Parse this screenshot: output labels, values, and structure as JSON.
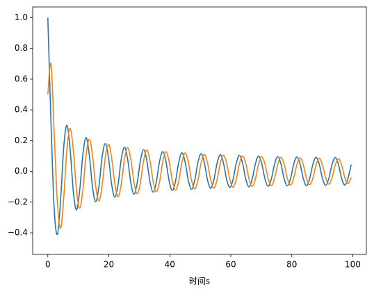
{
  "chart_data": {
    "type": "line",
    "xlabel": "时间s",
    "x": [
      0,
      1.05,
      2.09,
      3.14,
      4.19,
      5.24,
      6.28,
      7.33,
      8.38,
      9.42,
      10.47,
      11.52,
      12.57,
      13.61,
      14.66,
      15.71,
      16.76,
      17.8,
      18.85,
      19.9,
      20.94,
      21.99,
      23.04,
      24.09,
      25.13,
      26.18,
      27.23,
      28.27,
      29.32,
      30.37,
      31.42,
      32.46,
      33.51,
      34.56,
      35.6,
      36.65,
      37.7,
      38.75,
      39.79,
      40.84,
      41.89,
      42.94,
      43.98,
      45.03,
      46.08,
      47.12,
      48.17,
      49.22,
      50.27,
      51.31,
      52.36,
      53.41,
      54.45,
      55.5,
      56.55,
      57.6,
      58.64,
      59.69,
      60.74,
      61.78,
      62.83,
      63.88,
      64.93,
      65.97,
      67.02,
      68.07,
      69.12,
      70.16,
      71.21,
      72.26,
      73.3,
      74.35,
      75.4,
      76.45,
      77.49,
      78.54,
      79.59,
      80.63,
      81.68,
      82.73,
      83.78,
      84.82,
      85.87,
      86.92,
      87.96,
      89.01,
      90.06,
      91.11,
      92.15,
      93.2,
      94.25,
      95.3,
      96.34,
      97.39,
      98.44,
      99.48
    ],
    "series": [
      {
        "color": "#1f77b4",
        "values": [
          1.0,
          0.31,
          -0.245,
          -0.41,
          -0.185,
          0.165,
          0.3,
          0.14,
          -0.135,
          -0.25,
          -0.12,
          0.115,
          0.22,
          0.105,
          -0.103,
          -0.198,
          -0.096,
          0.093,
          0.181,
          0.089,
          -0.086,
          -0.168,
          -0.083,
          0.081,
          0.158,
          0.078,
          -0.076,
          -0.149,
          -0.073,
          0.072,
          0.141,
          0.07,
          -0.069,
          -0.135,
          -0.067,
          0.066,
          0.129,
          0.064,
          -0.063,
          -0.124,
          -0.062,
          0.061,
          0.121,
          0.06,
          -0.059,
          -0.117,
          -0.058,
          0.058,
          0.115,
          0.057,
          -0.056,
          -0.11,
          -0.055,
          0.054,
          0.108,
          0.054,
          -0.053,
          -0.105,
          -0.052,
          0.052,
          0.104,
          0.051,
          -0.051,
          -0.101,
          -0.05,
          0.05,
          0.1,
          0.05,
          -0.049,
          -0.097,
          -0.049,
          0.048,
          0.096,
          0.048,
          -0.047,
          -0.094,
          -0.047,
          0.047,
          0.094,
          0.047,
          -0.047,
          -0.093,
          -0.046,
          0.046,
          0.092,
          0.046,
          -0.046,
          -0.091,
          -0.045,
          0.045,
          0.09,
          0.045,
          -0.045,
          -0.089,
          -0.044,
          0.044
        ]
      },
      {
        "color": "#ff7f0e",
        "values": [
          0.5,
          0.7,
          0.245,
          -0.205,
          -0.37,
          -0.165,
          0.15,
          0.28,
          0.135,
          -0.125,
          -0.24,
          -0.115,
          0.11,
          0.21,
          0.103,
          -0.099,
          -0.192,
          -0.093,
          0.091,
          0.177,
          0.086,
          -0.084,
          -0.165,
          -0.081,
          0.079,
          0.155,
          0.076,
          -0.075,
          -0.146,
          -0.072,
          0.071,
          0.139,
          0.069,
          -0.068,
          -0.133,
          -0.066,
          0.065,
          0.128,
          0.063,
          -0.062,
          -0.123,
          -0.061,
          0.06,
          0.12,
          0.059,
          -0.058,
          -0.115,
          -0.057,
          0.056,
          0.111,
          0.055,
          -0.055,
          -0.109,
          -0.054,
          0.053,
          0.106,
          0.052,
          -0.052,
          -0.103,
          -0.051,
          0.051,
          0.1,
          0.05,
          -0.049,
          -0.097,
          -0.049,
          0.048,
          0.095,
          0.047,
          -0.047,
          -0.093,
          -0.046,
          0.046,
          0.092,
          0.046,
          -0.045,
          -0.089,
          -0.045,
          0.044,
          0.088,
          0.044,
          -0.044,
          -0.087,
          -0.043,
          0.043,
          0.085,
          0.042,
          -0.042,
          -0.083,
          -0.042,
          0.041,
          0.082,
          0.041,
          -0.04,
          -0.08,
          -0.04
        ]
      }
    ],
    "xlim": [
      -4.97,
      104.45
    ],
    "ylim": [
      -0.54,
      1.07
    ],
    "xticks": [
      0,
      20,
      40,
      60,
      80,
      100
    ],
    "yticks": [
      {
        "value": -0.4,
        "label": "−0.4"
      },
      {
        "value": -0.2,
        "label": "−0.2"
      },
      {
        "value": 0,
        "label": "0.0"
      },
      0.2,
      0.4,
      0.6,
      0.8,
      {
        "value": 1,
        "label": "1.0"
      }
    ]
  }
}
